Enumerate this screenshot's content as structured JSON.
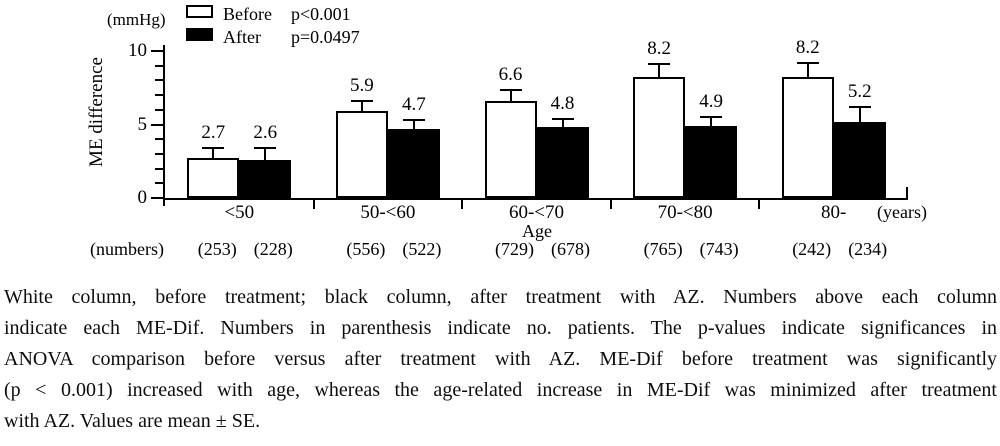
{
  "figure": {
    "caption_lines": [
      "White column, before treatment; black column, after treatment with AZ. Numbers above each column",
      "indicate each ME-Dif. Numbers in parenthesis indicate no. patients. The p-values indicate significances in",
      "ANOVA comparison before versus after treatment with AZ. ME-Dif before treatment was significantly",
      "(p < 0.001) increased with age, whereas the age-related increase in ME-Dif was minimized after treatment",
      "with AZ. Values are mean ± SE."
    ]
  },
  "chart_data": {
    "type": "bar",
    "title": "",
    "unit_label": "(mmHg)",
    "ylabel": "ME difference",
    "xlabel": "Age",
    "x_unit_label": "(years)",
    "numbers_label": "(numbers)",
    "ylim": [
      0,
      10
    ],
    "yticks": [
      0,
      5,
      10
    ],
    "minor_tick_step": 1,
    "grid": false,
    "categories": [
      "<50",
      "50-<60",
      "60-<70",
      "70-<80",
      "80-"
    ],
    "series": [
      {
        "name": "Before",
        "fill": "#ffffff",
        "values": [
          2.7,
          5.9,
          6.6,
          8.2,
          8.2
        ],
        "se": [
          0.7,
          0.7,
          0.75,
          0.9,
          1.0
        ],
        "patients": [
          253,
          556,
          729,
          765,
          242
        ]
      },
      {
        "name": "After",
        "fill": "#000000",
        "values": [
          2.6,
          4.7,
          4.8,
          4.9,
          5.2
        ],
        "se": [
          0.8,
          0.6,
          0.6,
          0.6,
          1.0
        ],
        "patients": [
          228,
          522,
          678,
          743,
          234
        ]
      }
    ],
    "legend": {
      "position": "top-left",
      "before_label": "Before",
      "after_label": "After",
      "p_before": "p<0.001",
      "p_after": "p=0.0497"
    }
  }
}
